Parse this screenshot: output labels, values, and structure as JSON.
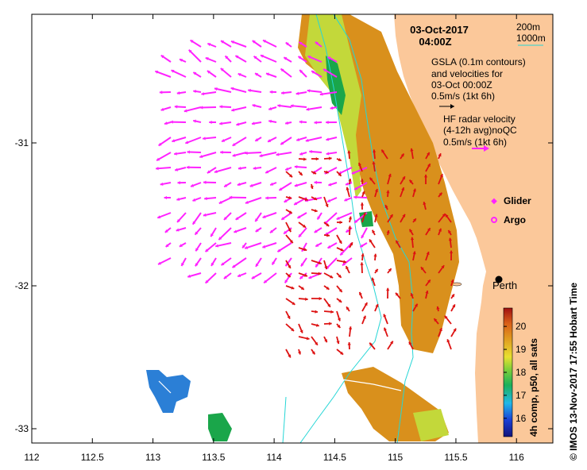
{
  "title": {
    "date": "03-Oct-2017",
    "time": "04:00Z"
  },
  "isobath_legend": {
    "line1": "200m",
    "line2": "1000m"
  },
  "gsla": {
    "line1": "GSLA (0.1m contours)",
    "line2": "and velocities for",
    "line3": "03-Oct 00:00Z",
    "scale": "0.5m/s (1kt 6h)"
  },
  "hf_radar": {
    "line1": "HF radar velocity",
    "line2": "(4-12h avg)noQC",
    "scale": "0.5m/s (1kt 6h)"
  },
  "markers": {
    "glider": "Glider",
    "argo": "Argo"
  },
  "city": {
    "name": "Perth"
  },
  "colorbar": {
    "label": "4h comp, p50, all sats",
    "ticks": [
      "20",
      "19",
      "18",
      "17",
      "16"
    ],
    "range": [
      15.2,
      20.8
    ]
  },
  "credit": "© IMOS 13-Nov-2017 17:55 Hobart Time",
  "axes": {
    "x_ticks": [
      "112",
      "112.5",
      "113",
      "113.5",
      "114",
      "114.5",
      "115",
      "115.5",
      "116"
    ],
    "y_ticks": [
      "-31",
      "-32",
      "-33"
    ],
    "xlim": [
      112,
      116.3
    ],
    "ylim": [
      -33.1,
      -30.1
    ]
  },
  "colors": {
    "land": "#fbc89a",
    "sst_warm": "#d9901c",
    "sst_mid": "#b7d63a",
    "sst_cool": "#1aa64a",
    "hf_arrows": "#ff22ff",
    "gsla_arrows": "#dd1111",
    "isobath": "#26d6d6"
  }
}
